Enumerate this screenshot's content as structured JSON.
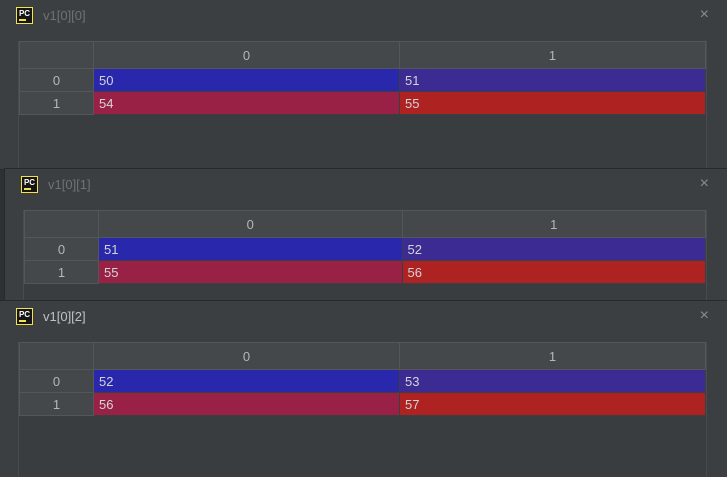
{
  "ui": {
    "pc_icon_label": "PC",
    "close_glyph": "×",
    "colors": {
      "page_bg": "#2e3133",
      "window_bg": "#3c3f41",
      "header_bg": "#45484a",
      "icon_yellow": "#f3e34a",
      "title_inactive": "#6f7274",
      "title_active": "#bfc2c4",
      "cell_blue": "#2927ac",
      "cell_purple": "#3c2b93",
      "cell_maroon": "#992145",
      "cell_red": "#ae2222"
    }
  },
  "windows": [
    {
      "title": "v1[0][0]",
      "active": false,
      "table": {
        "col_headers": [
          "0",
          "1"
        ],
        "rows": [
          {
            "header": "0",
            "cells": [
              {
                "value": "50",
                "bg": "#2927ac"
              },
              {
                "value": "51",
                "bg": "#3c2b93"
              }
            ]
          },
          {
            "header": "1",
            "cells": [
              {
                "value": "54",
                "bg": "#992145"
              },
              {
                "value": "55",
                "bg": "#ae2222"
              }
            ]
          }
        ]
      }
    },
    {
      "title": "v1[0][1]",
      "active": false,
      "table": {
        "col_headers": [
          "0",
          "1"
        ],
        "rows": [
          {
            "header": "0",
            "cells": [
              {
                "value": "51",
                "bg": "#2927ac"
              },
              {
                "value": "52",
                "bg": "#3c2b93"
              }
            ]
          },
          {
            "header": "1",
            "cells": [
              {
                "value": "55",
                "bg": "#992145"
              },
              {
                "value": "56",
                "bg": "#ae2222"
              }
            ]
          }
        ]
      }
    },
    {
      "title": "v1[0][2]",
      "active": true,
      "table": {
        "col_headers": [
          "0",
          "1"
        ],
        "rows": [
          {
            "header": "0",
            "cells": [
              {
                "value": "52",
                "bg": "#2927ac"
              },
              {
                "value": "53",
                "bg": "#3c2b93"
              }
            ]
          },
          {
            "header": "1",
            "cells": [
              {
                "value": "56",
                "bg": "#992145"
              },
              {
                "value": "57",
                "bg": "#ae2222"
              }
            ]
          }
        ]
      }
    }
  ]
}
